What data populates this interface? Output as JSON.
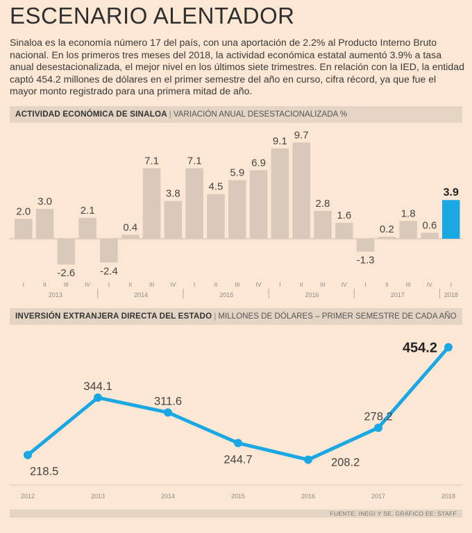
{
  "title": "ESCENARIO ALENTADOR",
  "intro": "Sinaloa es la economía número 17 del país, con una aportación de 2.2% al Producto Interno Bruto nacional. En los primeros tres meses del 2018, la actividad económica estatal aumentó 3.9% a tasa anual desestacionalizada, el mejor nivel en los últimos siete trimestres. En relación con la IED, la entidad captó 454.2 millones de dólares en el primer semestre del año en curso, cifra récord, ya que fue el mayor monto registrado para una primera mitad de año.",
  "colors": {
    "bar": "#d8c9ba",
    "highlight": "#19a8e4",
    "line": "#19a8e4",
    "background": "#fbe7d3",
    "band": "#e3d4c4"
  },
  "chart1_header": {
    "title": "ACTIVIDAD ECONÓMICA DE SINALOA",
    "subtitle": "VARIACIÓN ANUAL DESESTACIONALIZADA %"
  },
  "chart2_header": {
    "title": "INVERSIÓN EXTRANJERA DIRECTA DEL ESTADO",
    "subtitle": "MILLONES DE DÓLARES – PRIMER SEMESTRE DE CADA AÑO"
  },
  "footer": "FUENTE: INEGI Y SE. GRÁFICO EE: STAFF",
  "chart_data": [
    {
      "type": "bar",
      "title": "ACTIVIDAD ECONÓMICA DE SINALOA",
      "ylabel": "VARIACIÓN ANUAL DESESTACIONALIZADA %",
      "categories": [
        "I",
        "II",
        "III",
        "IV",
        "I",
        "II",
        "III",
        "IV",
        "I",
        "II",
        "III",
        "IV",
        "I",
        "II",
        "III",
        "IV",
        "I",
        "II",
        "III",
        "IV",
        "I"
      ],
      "values": [
        2.0,
        3.0,
        -2.6,
        2.1,
        -2.4,
        0.4,
        7.1,
        3.8,
        7.1,
        4.5,
        5.9,
        6.9,
        9.1,
        9.7,
        2.8,
        1.6,
        -1.3,
        0.2,
        1.8,
        0.6,
        3.9
      ],
      "labels": [
        "2.0",
        "3.0",
        "-2.6",
        "2.1",
        "-2.4",
        "0.4",
        "7.1",
        "3.8",
        "7.1",
        "4.5",
        "5.9",
        "6.9",
        "9.1",
        "9.7",
        "2.8",
        "1.6",
        "-1.3",
        "0.2",
        "1.8",
        "0.6",
        "3.9"
      ],
      "groups": [
        {
          "label": "2013",
          "count": 4
        },
        {
          "label": "2014",
          "count": 4
        },
        {
          "label": "2015",
          "count": 4
        },
        {
          "label": "2016",
          "count": 4
        },
        {
          "label": "2017",
          "count": 4
        },
        {
          "label": "2018",
          "count": 1
        }
      ],
      "highlight_index": 20
    },
    {
      "type": "line",
      "title": "INVERSIÓN EXTRANJERA DIRECTA DEL ESTADO",
      "ylabel": "MILLONES DE DÓLARES – PRIMER SEMESTRE DE CADA AÑO",
      "x": [
        "2012",
        "2013",
        "2014",
        "2015",
        "2016",
        "2017",
        "2018"
      ],
      "values": [
        218.5,
        344.1,
        311.6,
        244.7,
        208.2,
        278.2,
        454.2
      ],
      "labels": [
        "218.5",
        "344.1",
        "311.6",
        "244.7",
        "208.2",
        "278.2",
        "454.2"
      ],
      "label_positions": [
        "below",
        "above",
        "above",
        "below",
        "below",
        "above",
        "above"
      ],
      "ylim": [
        180,
        470
      ]
    }
  ]
}
